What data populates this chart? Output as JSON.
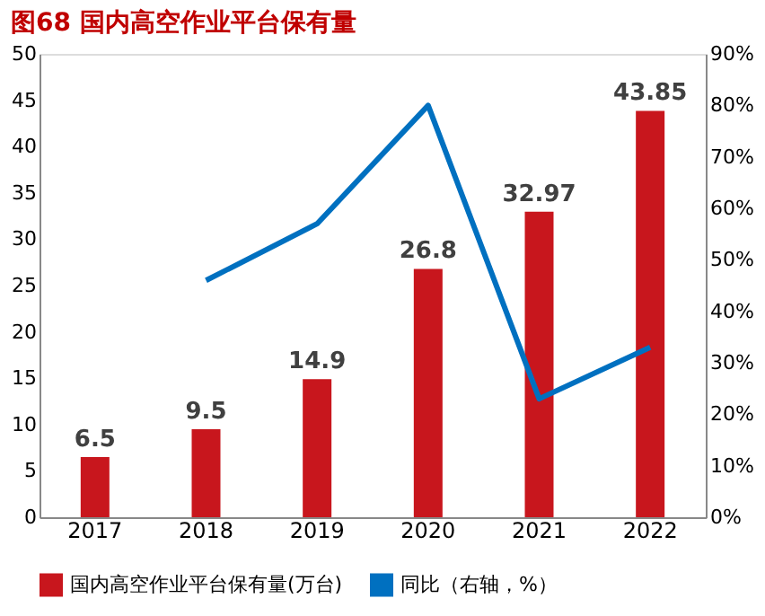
{
  "chart_data": {
    "type": "bar",
    "title": "图68  国内高空作业平台保有量",
    "categories": [
      "2017",
      "2018",
      "2019",
      "2020",
      "2021",
      "2022"
    ],
    "series": [
      {
        "name": "国内高空作业平台保有量(万台)",
        "color": "#c8161d",
        "values": [
          6.5,
          9.5,
          14.9,
          26.8,
          32.97,
          43.85
        ],
        "value_labels": [
          "6.5",
          "9.5",
          "14.9",
          "26.8",
          "32.97",
          "43.85"
        ]
      },
      {
        "name": "同比（右轴，%）",
        "type": "line",
        "axis": "y2",
        "color": "#0070c0",
        "values": [
          null,
          46,
          57,
          80,
          23,
          33
        ]
      }
    ],
    "ylim": [
      0,
      50
    ],
    "yticks": [
      0,
      5,
      10,
      15,
      20,
      25,
      30,
      35,
      40,
      45,
      50
    ],
    "y2lim": [
      0,
      90
    ],
    "y2ticks": [
      {
        "value": 0,
        "label": "0%"
      },
      {
        "value": 10,
        "label": "10%"
      },
      {
        "value": 20,
        "label": "20%"
      },
      {
        "value": 30,
        "label": "30%"
      },
      {
        "value": 40,
        "label": "40%"
      },
      {
        "value": 50,
        "label": "50%"
      },
      {
        "value": 60,
        "label": "60%"
      },
      {
        "value": 70,
        "label": "70%"
      },
      {
        "value": 80,
        "label": "80%"
      },
      {
        "value": 90,
        "label": "90%"
      }
    ],
    "legend": "bottom",
    "grid": false,
    "marker": "none",
    "line_style": "solid"
  }
}
